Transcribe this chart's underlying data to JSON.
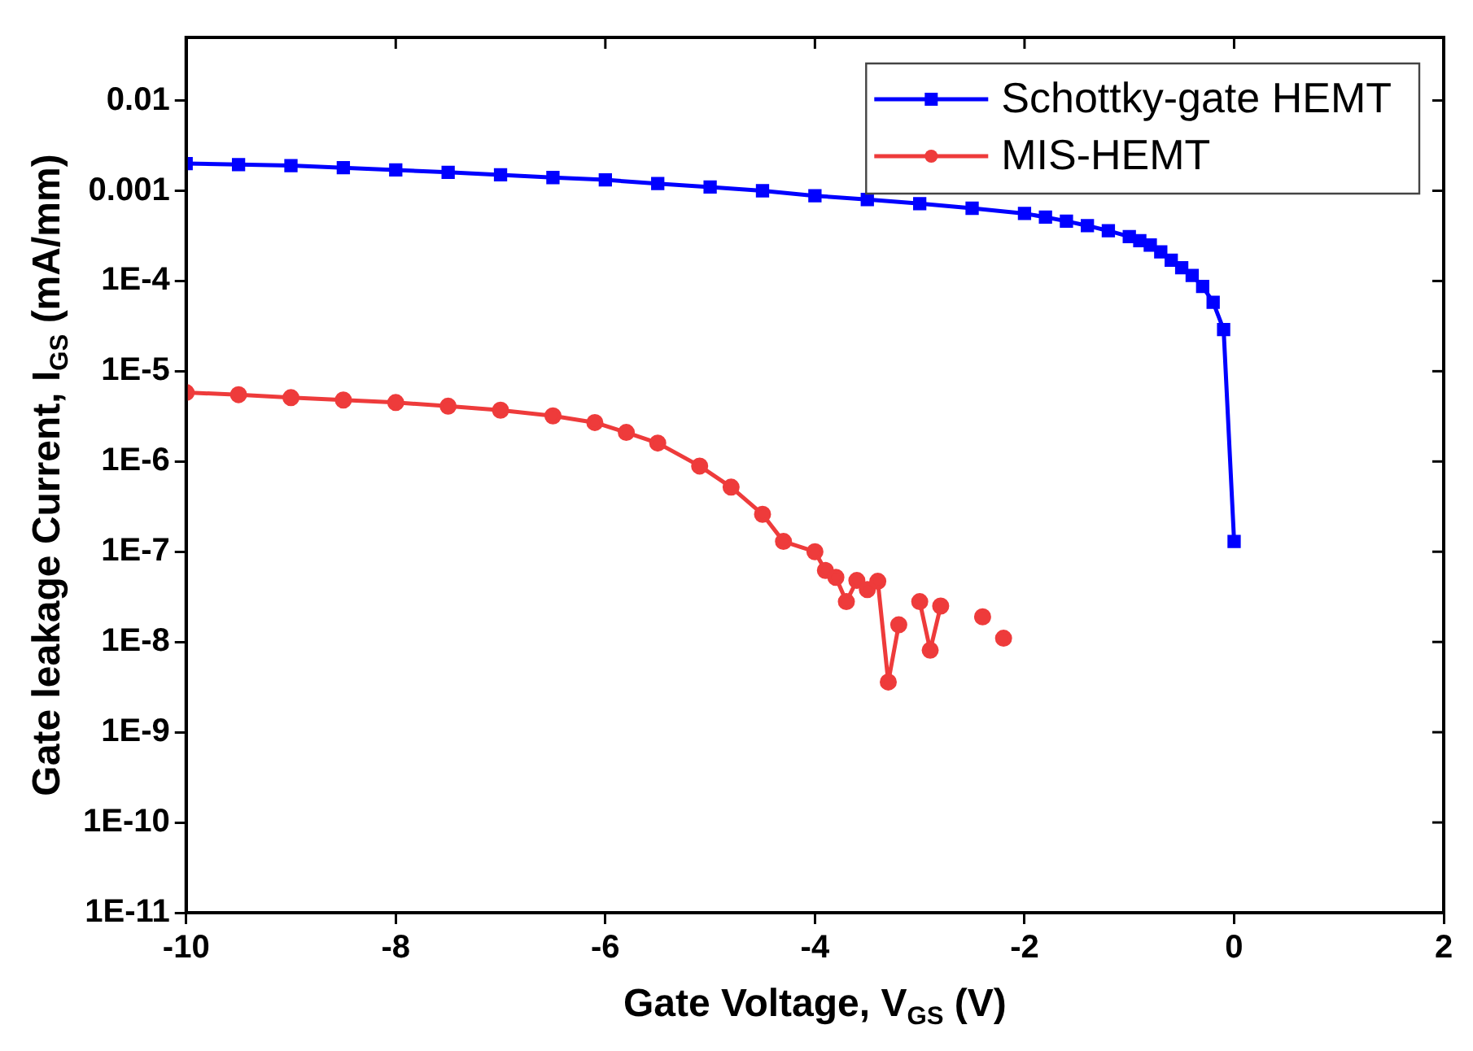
{
  "chart_data": {
    "type": "line",
    "xlabel": "Gate Voltage, V$_{GS}$ (V)",
    "ylabel": "Gate leakage Current, I$_{GS}$ (mA/mm)",
    "log": "y",
    "grid": false,
    "legend": "top right",
    "xlim": [
      -10,
      2
    ],
    "xticks": [
      -10,
      -8,
      -6,
      -4,
      -2,
      0,
      2
    ],
    "ylim": [
      1e-11,
      0.05
    ],
    "yticks": [
      {
        "value": 1e-11,
        "label": "1E-11"
      },
      {
        "value": 1e-10,
        "label": "1E-10"
      },
      {
        "value": 1e-09,
        "label": "1E-9"
      },
      {
        "value": 1e-08,
        "label": "1E-8"
      },
      {
        "value": 1e-07,
        "label": "1E-7"
      },
      {
        "value": 1e-06,
        "label": "1E-6"
      },
      {
        "value": 1e-05,
        "label": "1E-5"
      },
      {
        "value": 0.0001,
        "label": "1E-4"
      },
      {
        "value": 0.001,
        "label": "0.001"
      },
      {
        "value": 0.01,
        "label": "0.01"
      }
    ],
    "series": [
      {
        "name": "Schottky-gate HEMT",
        "color": "#0000ff",
        "marker": "square",
        "x": [
          -10,
          -9.5,
          -9,
          -8.5,
          -8,
          -7.5,
          -7,
          -6.5,
          -6,
          -5.5,
          -5,
          -4.5,
          -4,
          -3.5,
          -3,
          -2.5,
          -2,
          -1.8,
          -1.6,
          -1.4,
          -1.2,
          -1,
          -0.9,
          -0.8,
          -0.7,
          -0.6,
          -0.5,
          -0.4,
          -0.3,
          -0.2,
          -0.1,
          0
        ],
        "values": [
          0.002,
          0.00195,
          0.0019,
          0.0018,
          0.0017,
          0.0016,
          0.0015,
          0.0014,
          0.00132,
          0.0012,
          0.0011,
          0.001,
          0.00088,
          0.0008,
          0.00072,
          0.00064,
          0.00056,
          0.00051,
          0.00046,
          0.00041,
          0.00036,
          0.00031,
          0.00028,
          0.00025,
          0.00021,
          0.00017,
          0.00014,
          0.000115,
          8.7e-05,
          5.8e-05,
          2.9e-05,
          1.3e-07
        ]
      },
      {
        "name": "MIS-HEMT",
        "color": "#ee3b3b",
        "marker": "circle",
        "x": [
          -10,
          -9.5,
          -9,
          -8.5,
          -8,
          -7.5,
          -7,
          -6.5,
          -6.1,
          -5.8,
          -5.5,
          -5.1,
          -4.8,
          -4.5,
          -4.3,
          -4,
          -3.9,
          -3.8,
          -3.7,
          -3.6,
          -3.5,
          -3.4,
          -3.3,
          -3.2,
          -3.1,
          -3,
          -2.9,
          -2.8,
          -2.7,
          -2.4,
          -2.3,
          -2.2
        ],
        "values": [
          5.8e-06,
          5.5e-06,
          5.1e-06,
          4.8e-06,
          4.5e-06,
          4.1e-06,
          3.7e-06,
          3.2e-06,
          2.7e-06,
          2.1e-06,
          1.6e-06,
          8.9e-07,
          5.2e-07,
          2.6e-07,
          1.3e-07,
          1e-07,
          6.2e-08,
          5.2e-08,
          2.8e-08,
          4.8e-08,
          3.8e-08,
          4.7e-08,
          3.6e-09,
          1.55e-08,
          null,
          2.8e-08,
          8.1e-09,
          2.5e-08,
          null,
          1.9e-08,
          null,
          1.1e-08
        ]
      }
    ]
  }
}
